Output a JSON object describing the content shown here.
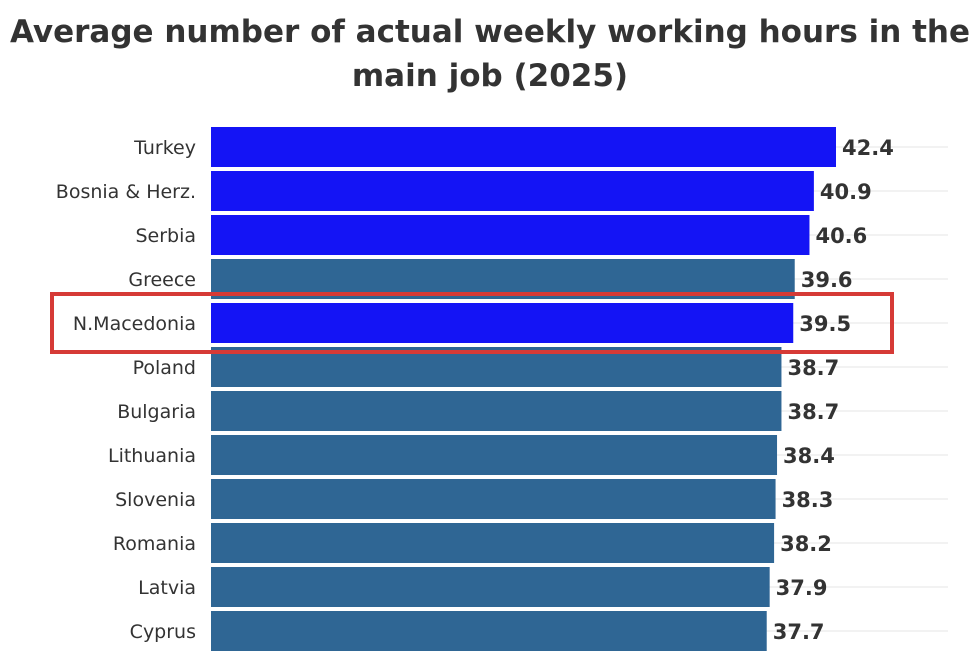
{
  "chart_data": {
    "type": "bar",
    "orientation": "horizontal",
    "title_lines": [
      "Average number of actual weekly working hours in the",
      "main job (2025)"
    ],
    "categories": [
      "Turkey",
      "Bosnia & Herz.",
      "Serbia",
      "Greece",
      "N.Macedonia",
      "Poland",
      "Bulgaria",
      "Lithuania",
      "Slovenia",
      "Romania",
      "Latvia",
      "Cyprus"
    ],
    "values": [
      42.4,
      40.9,
      40.6,
      39.6,
      39.5,
      38.7,
      38.7,
      38.4,
      38.3,
      38.2,
      37.9,
      37.7
    ],
    "value_labels": [
      "42.4",
      "40.9",
      "40.6",
      "39.6",
      "39.5",
      "38.7",
      "38.7",
      "38.4",
      "38.3",
      "38.2",
      "37.9",
      "37.7"
    ],
    "xlim": [
      0,
      42.4
    ],
    "highlighted": [
      "Turkey",
      "Bosnia & Herz.",
      "Serbia",
      "N.Macedonia"
    ],
    "emphasized": "N.Macedonia",
    "grid": true,
    "colors": {
      "highlight": "#1414f5",
      "default": "#2f6694",
      "emphasis_box": "#d63a36",
      "text": "#333333",
      "grid": "#e6e6e6"
    }
  }
}
